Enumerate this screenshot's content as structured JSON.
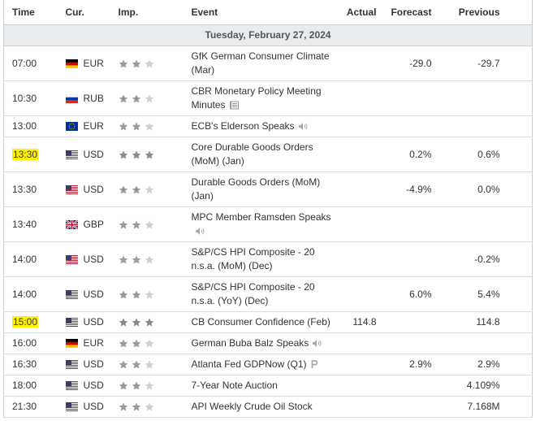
{
  "header": {
    "columns": [
      "Time",
      "Cur.",
      "Imp.",
      "Event",
      "Actual",
      "Forecast",
      "Previous"
    ]
  },
  "date": "Tuesday, February 27, 2024",
  "rows": [
    {
      "time": "07:00",
      "currency": "EUR",
      "importance": 2,
      "event": "GfK German Consumer Climate (Mar)",
      "forecast": "-29.0",
      "previous": "-29.7"
    },
    {
      "time": "10:30",
      "currency": "RUB",
      "importance": 2,
      "event": "CBR Monetary Policy Meeting Minutes"
    },
    {
      "time": "13:00",
      "currency": "EUR",
      "importance": 2,
      "event": "ECB's Elderson Speaks"
    },
    {
      "time": "13:30",
      "currency": "USD",
      "importance": 3,
      "event": "Core Durable Goods Orders (MoM) (Jan)",
      "forecast": "0.2%",
      "previous": "0.6%"
    },
    {
      "time": "13:30",
      "currency": "USD",
      "importance": 2,
      "event": "Durable Goods Orders (MoM) (Jan)",
      "forecast": "-4.9%",
      "previous": "0.0%"
    },
    {
      "time": "13:40",
      "currency": "GBP",
      "importance": 2,
      "event": "MPC Member Ramsden Speaks"
    },
    {
      "time": "14:00",
      "currency": "USD",
      "importance": 2,
      "event": "S&P/CS HPI Composite - 20 n.s.a. (MoM) (Dec)",
      "previous": "-0.2%"
    },
    {
      "time": "14:00",
      "currency": "USD",
      "importance": 2,
      "event": "S&P/CS HPI Composite - 20 n.s.a. (YoY) (Dec)",
      "forecast": "6.0%",
      "previous": "5.4%"
    },
    {
      "time": "15:00",
      "currency": "USD",
      "importance": 3,
      "event": "CB Consumer Confidence (Feb)",
      "actual": "114.8",
      "previous": "114.8"
    },
    {
      "time": "16:00",
      "currency": "EUR",
      "importance": 2,
      "event": "German Buba Balz Speaks"
    },
    {
      "time": "16:30",
      "currency": "USD",
      "importance": 2,
      "event": "Atlanta Fed GDPNow (Q1)",
      "forecast": "2.9%",
      "previous": "2.9%"
    },
    {
      "time": "18:00",
      "currency": "USD",
      "importance": 2,
      "event": "7-Year Note Auction",
      "previous": "4.109%"
    },
    {
      "time": "21:30",
      "currency": "USD",
      "importance": 2,
      "event": "API Weekly Crude Oil Stock",
      "previous": "7.168M"
    }
  ]
}
